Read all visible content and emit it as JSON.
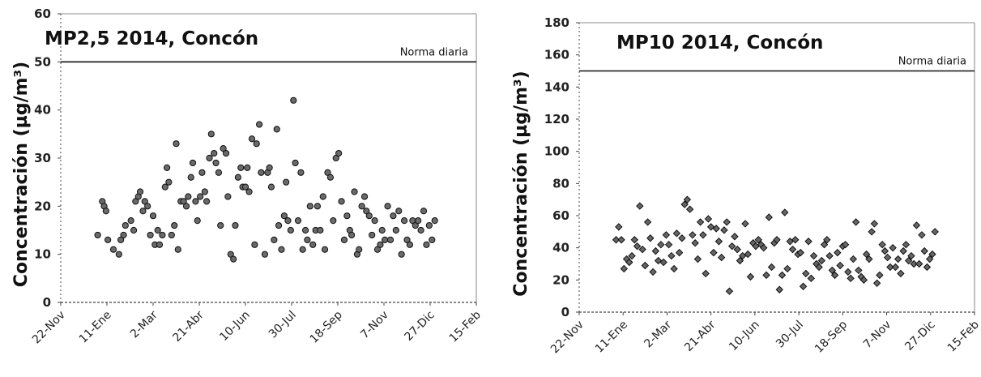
{
  "chart_data": [
    {
      "type": "scatter",
      "title": "MP2,5 2014, Concón",
      "ylabel": "Concentración (µg/m³)",
      "xlabel": "",
      "x_tick_labels": [
        "22-Nov",
        "11-Ene",
        "2-Mar",
        "21-Abr",
        "10-Jun",
        "30-Jul",
        "18-Sep",
        "7-Nov",
        "27-Dic",
        "15-Feb"
      ],
      "y_ticks": [
        "0",
        "10",
        "20",
        "30",
        "40",
        "50",
        "60"
      ],
      "ylim": [
        0,
        60
      ],
      "xlim": [
        "2013-11-22",
        "2015-02-15"
      ],
      "grid": false,
      "reference_line": {
        "label": "Norma diaria",
        "value": 50
      },
      "series": [
        {
          "marker": "circle",
          "x": [
            "2014-01-01",
            "2014-01-06",
            "2014-01-08",
            "2014-01-10",
            "2014-01-12",
            "2014-01-18",
            "2014-01-24",
            "2014-01-26",
            "2014-01-29",
            "2014-01-31",
            "2014-02-06",
            "2014-02-09",
            "2014-02-11",
            "2014-02-14",
            "2014-02-16",
            "2014-02-19",
            "2014-02-21",
            "2014-02-24",
            "2014-02-27",
            "2014-03-02",
            "2014-03-04",
            "2014-03-07",
            "2014-03-09",
            "2014-03-12",
            "2014-03-15",
            "2014-03-17",
            "2014-03-19",
            "2014-03-22",
            "2014-03-25",
            "2014-03-27",
            "2014-03-29",
            "2014-04-01",
            "2014-04-04",
            "2014-04-07",
            "2014-04-09",
            "2014-04-12",
            "2014-04-14",
            "2014-04-17",
            "2014-04-19",
            "2014-04-22",
            "2014-04-24",
            "2014-04-27",
            "2014-04-29",
            "2014-05-02",
            "2014-05-04",
            "2014-05-07",
            "2014-05-09",
            "2014-05-12",
            "2014-05-14",
            "2014-05-17",
            "2014-05-20",
            "2014-05-22",
            "2014-05-25",
            "2014-05-28",
            "2014-05-30",
            "2014-06-02",
            "2014-06-05",
            "2014-06-07",
            "2014-06-10",
            "2014-06-12",
            "2014-06-14",
            "2014-06-17",
            "2014-06-20",
            "2014-06-22",
            "2014-06-25",
            "2014-06-27",
            "2014-07-01",
            "2014-07-04",
            "2014-07-06",
            "2014-07-08",
            "2014-07-11",
            "2014-07-14",
            "2014-07-16",
            "2014-07-19",
            "2014-07-22",
            "2014-07-24",
            "2014-07-26",
            "2014-07-29",
            "2014-08-01",
            "2014-08-03",
            "2014-08-06",
            "2014-08-09",
            "2014-08-11",
            "2014-08-14",
            "2014-08-16",
            "2014-08-19",
            "2014-08-22",
            "2014-08-25",
            "2014-08-27",
            "2014-08-30",
            "2014-09-02",
            "2014-09-04",
            "2014-09-07",
            "2014-09-10",
            "2014-09-13",
            "2014-09-16",
            "2014-09-19",
            "2014-09-22",
            "2014-09-25",
            "2014-09-28",
            "2014-10-01",
            "2014-10-03",
            "2014-10-06",
            "2014-10-09",
            "2014-10-11",
            "2014-10-14",
            "2014-10-17",
            "2014-10-19",
            "2014-10-22",
            "2014-10-25",
            "2014-10-28",
            "2014-10-31",
            "2014-11-03",
            "2014-11-05",
            "2014-11-08",
            "2014-11-11",
            "2014-11-14",
            "2014-11-17",
            "2014-11-20",
            "2014-11-23",
            "2014-11-26",
            "2014-11-29",
            "2014-12-02",
            "2014-12-05",
            "2014-12-08",
            "2014-12-11",
            "2014-12-14",
            "2014-12-17",
            "2014-12-20",
            "2014-12-23",
            "2014-12-26",
            "2014-12-29",
            "2015-01-01"
          ],
          "y": [
            14,
            21,
            20,
            19,
            13,
            11,
            10,
            13,
            14,
            16,
            17,
            15,
            21,
            22,
            23,
            19,
            21,
            20,
            14,
            18,
            12,
            15,
            12,
            14,
            24,
            28,
            25,
            14,
            16,
            33,
            11,
            21,
            21,
            20,
            22,
            26,
            29,
            21,
            17,
            22,
            27,
            23,
            21,
            30,
            35,
            31,
            29,
            27,
            16,
            32,
            31,
            22,
            10,
            9,
            16,
            26,
            28,
            24,
            24,
            28,
            23,
            34,
            12,
            33,
            37,
            27,
            10,
            27,
            28,
            24,
            13,
            36,
            16,
            11,
            18,
            25,
            17,
            15,
            42,
            29,
            17,
            27,
            11,
            15,
            13,
            20,
            12,
            15,
            20,
            15,
            22,
            11,
            27,
            26,
            17,
            30,
            31,
            21,
            13,
            18,
            15,
            14,
            23,
            10,
            11,
            20,
            22,
            19,
            18,
            14,
            17,
            11,
            12,
            15,
            13,
            20,
            13,
            18,
            15,
            19,
            10,
            17,
            13,
            12,
            17,
            16,
            17,
            15,
            19,
            12,
            16,
            13,
            17
          ]
        }
      ]
    },
    {
      "type": "scatter",
      "title": "MP10 2014, Concón",
      "ylabel": "Concentración (µg/m³)",
      "xlabel": "",
      "x_tick_labels": [
        "22-Nov",
        "11-Ene",
        "2-Mar",
        "21-Abr",
        "10-Jun",
        "30-Jul",
        "18-Sep",
        "7-Nov",
        "27-Dic",
        "15-Feb"
      ],
      "y_ticks": [
        "0",
        "20",
        "40",
        "60",
        "80",
        "100",
        "120",
        "140",
        "160",
        "180"
      ],
      "ylim": [
        0,
        180
      ],
      "xlim": [
        "2013-11-22",
        "2015-02-15"
      ],
      "grid": false,
      "reference_line": {
        "label": "Norma diaria",
        "value": 150
      },
      "series": [
        {
          "marker": "diamond",
          "x": [
            "2014-01-03",
            "2014-01-06",
            "2014-01-09",
            "2014-01-12",
            "2014-01-15",
            "2014-01-18",
            "2014-01-21",
            "2014-01-24",
            "2014-01-27",
            "2014-01-30",
            "2014-02-02",
            "2014-02-05",
            "2014-02-08",
            "2014-02-11",
            "2014-02-14",
            "2014-02-17",
            "2014-02-20",
            "2014-02-23",
            "2014-02-26",
            "2014-03-01",
            "2014-03-04",
            "2014-03-07",
            "2014-03-10",
            "2014-03-13",
            "2014-03-16",
            "2014-03-19",
            "2014-03-22",
            "2014-03-25",
            "2014-03-28",
            "2014-03-31",
            "2014-04-03",
            "2014-04-06",
            "2014-04-09",
            "2014-04-12",
            "2014-04-15",
            "2014-04-18",
            "2014-04-21",
            "2014-04-24",
            "2014-04-27",
            "2014-04-30",
            "2014-05-03",
            "2014-05-06",
            "2014-05-09",
            "2014-05-12",
            "2014-05-15",
            "2014-05-18",
            "2014-05-21",
            "2014-05-24",
            "2014-05-27",
            "2014-05-30",
            "2014-06-02",
            "2014-06-05",
            "2014-06-08",
            "2014-06-11",
            "2014-06-14",
            "2014-06-17",
            "2014-06-20",
            "2014-06-23",
            "2014-06-26",
            "2014-06-29",
            "2014-07-02",
            "2014-07-05",
            "2014-07-08",
            "2014-07-11",
            "2014-07-14",
            "2014-07-17",
            "2014-07-20",
            "2014-07-23",
            "2014-07-26",
            "2014-07-29",
            "2014-08-01",
            "2014-08-04",
            "2014-08-07",
            "2014-08-10",
            "2014-08-13",
            "2014-08-16",
            "2014-08-19",
            "2014-08-22",
            "2014-08-25",
            "2014-08-28",
            "2014-08-31",
            "2014-09-03",
            "2014-09-06",
            "2014-09-09",
            "2014-09-12",
            "2014-09-15",
            "2014-09-18",
            "2014-09-21",
            "2014-09-24",
            "2014-09-27",
            "2014-09-30",
            "2014-10-03",
            "2014-10-06",
            "2014-10-09",
            "2014-10-12",
            "2014-10-15",
            "2014-10-18",
            "2014-10-21",
            "2014-10-24",
            "2014-10-27",
            "2014-10-30",
            "2014-11-02",
            "2014-11-05",
            "2014-11-08",
            "2014-11-11",
            "2014-11-14",
            "2014-11-17",
            "2014-11-20",
            "2014-11-23",
            "2014-11-26",
            "2014-11-29",
            "2014-12-02",
            "2014-12-05",
            "2014-12-08",
            "2014-12-11",
            "2014-12-14",
            "2014-12-17",
            "2014-12-20",
            "2014-12-23",
            "2014-12-26",
            "2014-12-29",
            "2015-01-01"
          ],
          "y": [
            45,
            53,
            45,
            27,
            33,
            31,
            35,
            45,
            41,
            66,
            39,
            29,
            56,
            46,
            25,
            38,
            32,
            42,
            31,
            48,
            42,
            35,
            27,
            49,
            37,
            46,
            67,
            70,
            64,
            48,
            43,
            33,
            56,
            48,
            24,
            58,
            53,
            37,
            52,
            44,
            34,
            51,
            56,
            13,
            41,
            47,
            39,
            32,
            35,
            55,
            36,
            22,
            43,
            41,
            45,
            42,
            40,
            23,
            59,
            28,
            43,
            45,
            14,
            23,
            62,
            27,
            44,
            39,
            45,
            36,
            37,
            16,
            24,
            44,
            21,
            35,
            30,
            28,
            32,
            42,
            45,
            35,
            26,
            23,
            37,
            29,
            41,
            42,
            25,
            21,
            33,
            56,
            26,
            22,
            20,
            36,
            33,
            50,
            55,
            18,
            23,
            42,
            38,
            34,
            28,
            40,
            28,
            33,
            24,
            38,
            42,
            32,
            35,
            30,
            54,
            30,
            48,
            38,
            28,
            33,
            36,
            50
          ]
        }
      ]
    }
  ]
}
